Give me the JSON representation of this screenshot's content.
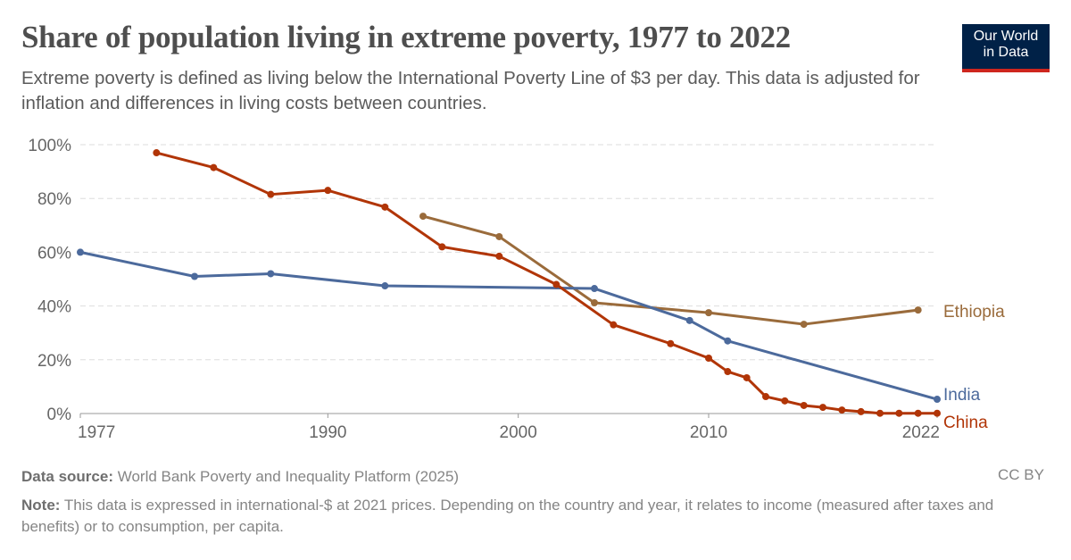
{
  "header": {
    "title": "Share of population living in extreme poverty, 1977 to 2022",
    "subtitle": "Extreme poverty is defined as living below the International Poverty Line of $3 per day. This data is adjusted for inflation and differences in living costs between countries.",
    "logo_line1": "Our World",
    "logo_line2": "in Data"
  },
  "footer": {
    "source_label": "Data source:",
    "source": "World Bank Poverty and Inequality Platform (2025)",
    "license": "CC BY",
    "note_label": "Note:",
    "note": "This data is expressed in international-$ at 2021 prices. Depending on the country and year, it relates to income (measured after taxes and benefits) or to consumption, per capita."
  },
  "chart_data": {
    "type": "line",
    "xlim": [
      1977,
      2022
    ],
    "ylim": [
      0,
      100
    ],
    "x_ticks": [
      1977,
      1990,
      2000,
      2010,
      2022
    ],
    "y_ticks": [
      0,
      20,
      40,
      60,
      80,
      100
    ],
    "y_tick_labels": [
      "0%",
      "20%",
      "40%",
      "60%",
      "80%",
      "100%"
    ],
    "grid": "horizontal dashed",
    "legend": "line-end labels",
    "series": [
      {
        "name": "Ethiopia",
        "color": "#9a6b3b",
        "points": [
          [
            1995,
            73.4
          ],
          [
            1999,
            65.8
          ],
          [
            2004,
            41.2
          ],
          [
            2010,
            37.5
          ],
          [
            2015,
            33.2
          ],
          [
            2021,
            38.5
          ]
        ]
      },
      {
        "name": "India",
        "color": "#4c6a9c",
        "points": [
          [
            1977,
            60
          ],
          [
            1983,
            51
          ],
          [
            1987,
            52
          ],
          [
            1993,
            47.5
          ],
          [
            2004,
            46.5
          ],
          [
            2009,
            34.6
          ],
          [
            2011,
            27
          ],
          [
            2022,
            5.3
          ]
        ]
      },
      {
        "name": "China",
        "color": "#b13507",
        "points": [
          [
            1981,
            97
          ],
          [
            1984,
            91.5
          ],
          [
            1987,
            81.5
          ],
          [
            1990,
            83
          ],
          [
            1993,
            76.8
          ],
          [
            1996,
            62
          ],
          [
            1999,
            58.5
          ],
          [
            2002,
            48
          ],
          [
            2005,
            33
          ],
          [
            2008,
            26
          ],
          [
            2010,
            20.6
          ],
          [
            2011,
            15.6
          ],
          [
            2012,
            13.3
          ],
          [
            2013,
            6.3
          ],
          [
            2014,
            4.7
          ],
          [
            2015,
            3
          ],
          [
            2016,
            2.3
          ],
          [
            2017,
            1.3
          ],
          [
            2018,
            0.7
          ],
          [
            2019,
            0.1
          ],
          [
            2020,
            0.1
          ],
          [
            2021,
            0.1
          ],
          [
            2022,
            0.1
          ]
        ]
      }
    ]
  }
}
